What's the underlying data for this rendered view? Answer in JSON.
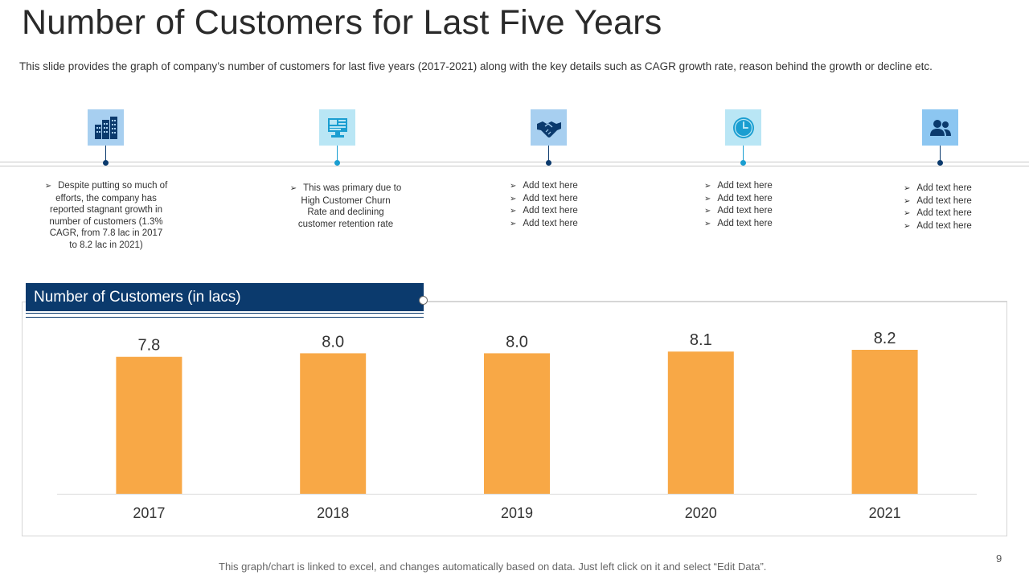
{
  "slide": {
    "title": "Number of Customers for Last Five Years",
    "subtitle": "This slide provides the graph of company’s number of customers for last five years (2017-2021) along with the key details such as CAGR growth rate, reason behind the growth or decline etc.",
    "footer": "This graph/chart is linked to excel,  and changes automatically based on data. Just left click on it and select “Edit Data”.",
    "page_number": "9"
  },
  "timeline": {
    "items": [
      {
        "icon": "buildings-icon",
        "lines": [
          "Despite putting so much of",
          "efforts, the company has",
          "reported stagnant growth in",
          "number of customers (1.3%",
          "CAGR, from 7.8 lac in 2017",
          "to 8.2 lac in 2021)"
        ]
      },
      {
        "icon": "computer-dashboard-icon",
        "lines": [
          "This was primary due to",
          "High Customer Churn",
          "Rate and declining",
          "customer retention rate"
        ]
      },
      {
        "icon": "handshake-icon",
        "bullets": [
          "Add text here",
          "Add text here",
          "Add text here",
          "Add text here"
        ]
      },
      {
        "icon": "clock-icon",
        "bullets": [
          "Add text here",
          "Add text here",
          "Add text here",
          "Add text here"
        ]
      },
      {
        "icon": "users-icon",
        "bullets": [
          "Add text here",
          "Add text here",
          "Add text here",
          "Add text here"
        ]
      }
    ]
  },
  "chart_header": "Number of Customers (in lacs)",
  "colors": {
    "bar": "#f8a846",
    "header_bg": "#0b3a6d",
    "icon_dark": "#0b3a6d",
    "icon_cyan": "#1a9ed1"
  },
  "chart_data": {
    "type": "bar",
    "title": "Number of Customers (in lacs)",
    "categories": [
      "2017",
      "2018",
      "2019",
      "2020",
      "2021"
    ],
    "values": [
      7.8,
      8.0,
      8.0,
      8.1,
      8.2
    ],
    "data_labels": [
      "7.8",
      "8.0",
      "8.0",
      "8.1",
      "8.2"
    ],
    "xlabel": "",
    "ylabel": "",
    "ylim": [
      0,
      8.2
    ],
    "grid": false,
    "legend": "none"
  }
}
